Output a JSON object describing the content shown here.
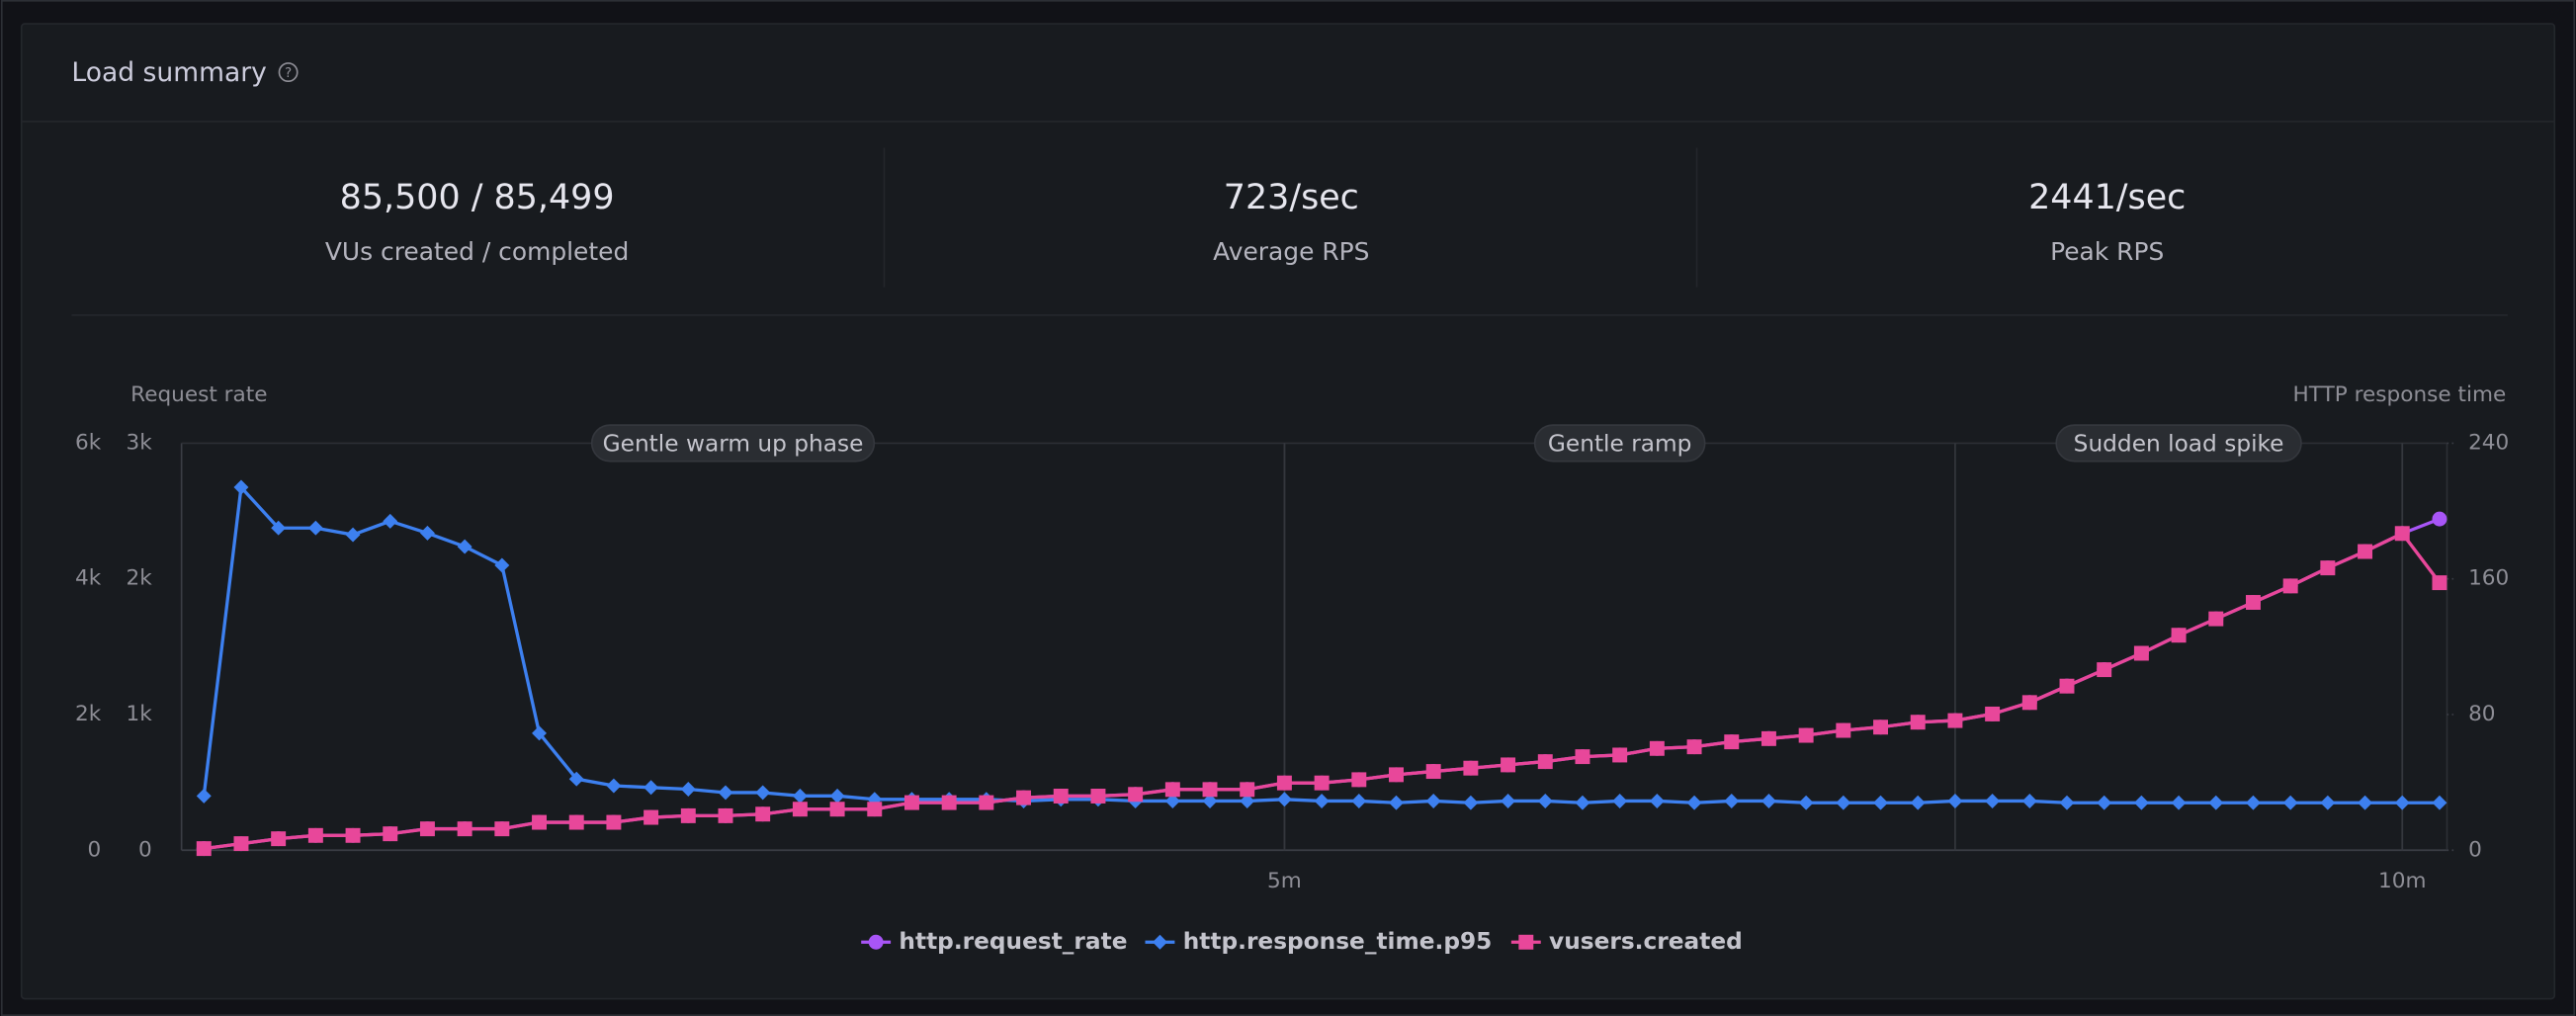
{
  "header": {
    "title": "Load summary"
  },
  "stats": [
    {
      "value": "85,500 / 85,499",
      "label": "VUs created / completed"
    },
    {
      "value": "723/sec",
      "label": "Average RPS"
    },
    {
      "value": "2441/sec",
      "label": "Peak RPS"
    }
  ],
  "chart_data": {
    "type": "line",
    "y_label": "Request rate",
    "y2_label": "HTTP response time",
    "x": [
      10,
      20,
      30,
      40,
      50,
      60,
      70,
      80,
      90,
      100,
      110,
      120,
      130,
      140,
      150,
      160,
      170,
      180,
      190,
      200,
      210,
      220,
      230,
      240,
      250,
      260,
      270,
      280,
      290,
      300,
      310,
      320,
      330,
      340,
      350,
      360,
      370,
      380,
      390,
      400,
      410,
      420,
      430,
      440,
      450,
      460,
      470,
      480,
      490,
      500,
      510,
      520,
      530,
      540,
      550,
      560,
      570,
      580,
      590,
      600,
      610
    ],
    "xlim": [
      4,
      612
    ],
    "xticks": [
      {
        "value": 300,
        "label": "5m"
      },
      {
        "value": 600,
        "label": "10m"
      }
    ],
    "ylim": [
      0,
      6000
    ],
    "yticks": [
      {
        "value": 0,
        "label": "0"
      },
      {
        "value": 2000,
        "label": "2k"
      },
      {
        "value": 4000,
        "label": "4k"
      },
      {
        "value": 6000,
        "label": "6k"
      }
    ],
    "y3lim": [
      0,
      3000
    ],
    "y3ticks": [
      {
        "value": 0,
        "label": "0"
      },
      {
        "value": 1000,
        "label": "1k"
      },
      {
        "value": 2000,
        "label": "2k"
      },
      {
        "value": 3000,
        "label": "3k"
      }
    ],
    "y2lim": [
      0,
      240
    ],
    "y2ticks": [
      0,
      80,
      160,
      240
    ],
    "annotations": [
      {
        "label": "Gentle warm up phase",
        "start": 0,
        "end": 300
      },
      {
        "label": "Gentle ramp",
        "start": 300,
        "end": 480
      },
      {
        "label": "Sudden load spike",
        "start": 480,
        "end": 600
      }
    ],
    "series": [
      {
        "name": "http.request_rate",
        "color": "#a855f7",
        "marker": "circle",
        "axis": "y3",
        "values": [
          12,
          48,
          85,
          109,
          109,
          121,
          158,
          158,
          158,
          206,
          206,
          206,
          242,
          254,
          254,
          266,
          303,
          303,
          303,
          351,
          351,
          351,
          387,
          399,
          399,
          412,
          448,
          448,
          448,
          496,
          496,
          520,
          557,
          581,
          605,
          629,
          653,
          690,
          702,
          750,
          762,
          799,
          823,
          847,
          883,
          907,
          944,
          956,
          1004,
          1089,
          1210,
          1331,
          1452,
          1585,
          1706,
          1827,
          1948,
          2081,
          2202,
          2335,
          2441
        ]
      },
      {
        "name": "http.response_time.p95",
        "color": "#3d80f0",
        "marker": "diamond",
        "axis": "y2",
        "values": [
          32,
          214,
          190,
          190,
          186,
          194,
          187,
          179,
          168,
          69,
          42,
          38,
          37,
          36,
          34,
          34,
          32,
          32,
          30,
          30,
          30,
          30,
          29,
          30,
          30,
          29,
          29,
          29,
          29,
          30,
          29,
          29,
          28,
          29,
          28,
          29,
          29,
          28,
          29,
          29,
          28,
          29,
          29,
          28,
          28,
          28,
          28,
          29,
          29,
          29,
          28,
          28,
          28,
          28,
          28,
          28,
          28,
          28,
          28,
          28,
          28
        ]
      },
      {
        "name": "vusers.created",
        "color": "#e8479a",
        "marker": "square",
        "axis": "y",
        "values": [
          24,
          97,
          169,
          218,
          218,
          242,
          315,
          315,
          315,
          411,
          411,
          411,
          484,
          508,
          508,
          532,
          605,
          605,
          605,
          702,
          702,
          702,
          774,
          798,
          798,
          823,
          895,
          895,
          895,
          992,
          992,
          1040,
          1113,
          1161,
          1210,
          1258,
          1306,
          1379,
          1403,
          1500,
          1524,
          1597,
          1645,
          1693,
          1766,
          1814,
          1887,
          1911,
          2008,
          2177,
          2419,
          2661,
          2903,
          3169,
          3411,
          3653,
          3895,
          4161,
          4403,
          4669,
          3943
        ]
      }
    ]
  }
}
